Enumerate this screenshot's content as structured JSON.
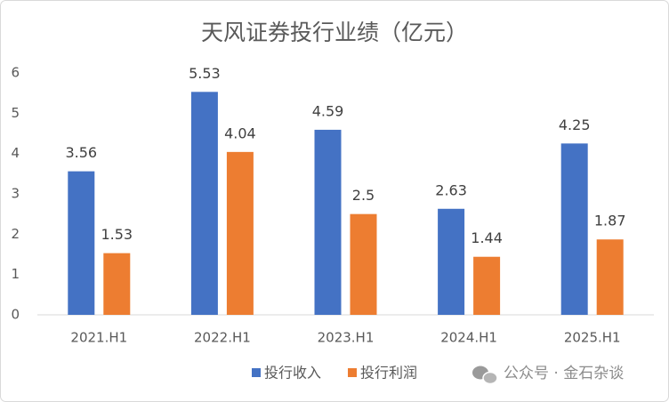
{
  "chart_data": {
    "type": "bar",
    "title": "天风证券投行业绩（亿元）",
    "categories": [
      "2021.H1",
      "2022.H1",
      "2023.H1",
      "2024.H1",
      "2025.H1"
    ],
    "series": [
      {
        "name": "投行收入",
        "color": "#4472c4",
        "values": [
          3.56,
          5.53,
          4.59,
          2.63,
          4.25
        ]
      },
      {
        "name": "投行利润",
        "color": "#ed7d31",
        "values": [
          1.53,
          4.04,
          2.5,
          1.44,
          1.87
        ]
      }
    ],
    "ylim": [
      0,
      6
    ],
    "yticks": [
      0,
      1,
      2,
      3,
      4,
      5,
      6
    ],
    "grid": false,
    "legend": "bottom",
    "watermark": "公众号 · 金石杂谈"
  }
}
